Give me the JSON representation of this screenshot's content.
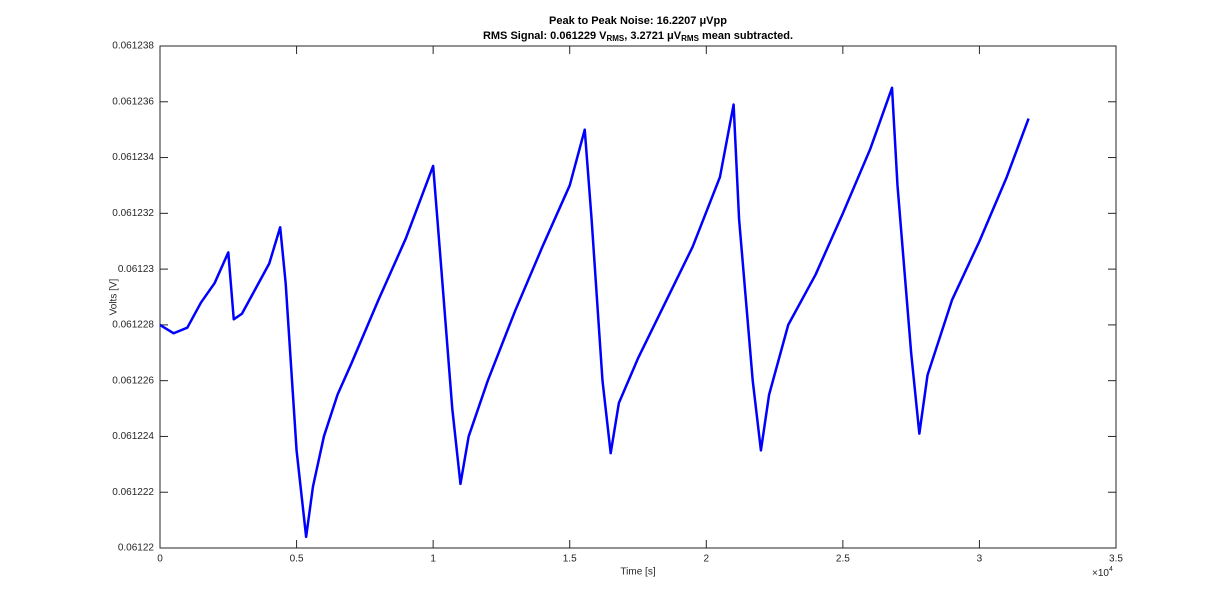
{
  "chart_data": {
    "type": "line",
    "title": "Peak to Peak Noise: 16.2207 μVpp",
    "subtitle_parts": [
      "RMS Signal: 0.061229 V",
      "RMS",
      ", 3.2721 μV",
      "RMS",
      " mean subtracted."
    ],
    "x_label": "Time [s]",
    "y_label": "Volts [V]",
    "x_exponent": {
      "base": "×10",
      "power": "4"
    },
    "xlim": [
      0,
      35000
    ],
    "ylim": [
      0.06122,
      0.061238
    ],
    "xticks": [
      {
        "value": 0,
        "label": "0"
      },
      {
        "value": 5000,
        "label": "0.5"
      },
      {
        "value": 10000,
        "label": "1"
      },
      {
        "value": 15000,
        "label": "1.5"
      },
      {
        "value": 20000,
        "label": "2"
      },
      {
        "value": 25000,
        "label": "2.5"
      },
      {
        "value": 30000,
        "label": "3"
      },
      {
        "value": 35000,
        "label": "3.5"
      }
    ],
    "yticks": [
      0.06122,
      0.061222,
      0.061224,
      0.061226,
      0.061228,
      0.06123,
      0.061232,
      0.061234,
      0.061236,
      0.061238
    ],
    "grid": false,
    "x": [
      0,
      500,
      1000,
      1500,
      2000,
      2500,
      2700,
      3000,
      3500,
      4000,
      4400,
      4600,
      5000,
      5350,
      5600,
      6000,
      6500,
      7000,
      8000,
      9000,
      10000,
      10300,
      10700,
      11000,
      11300,
      12000,
      13000,
      14000,
      15000,
      15550,
      15800,
      16200,
      16500,
      16800,
      17500,
      18500,
      19500,
      20500,
      21000,
      21200,
      21700,
      22000,
      22300,
      23000,
      24000,
      25000,
      26000,
      26800,
      27000,
      27500,
      27800,
      28100,
      29000,
      30000,
      31000,
      31800
    ],
    "series": [
      {
        "color": "#0000ff",
        "values": [
          0.061228,
          0.0612277,
          0.0612279,
          0.0612288,
          0.0612295,
          0.0612306,
          0.0612282,
          0.0612284,
          0.0612293,
          0.0612302,
          0.0612315,
          0.0612295,
          0.0612235,
          0.0612204,
          0.0612222,
          0.061224,
          0.0612255,
          0.0612266,
          0.0612289,
          0.0612311,
          0.0612337,
          0.06123,
          0.061225,
          0.0612223,
          0.061224,
          0.061226,
          0.0612285,
          0.0612308,
          0.061233,
          0.061235,
          0.0612318,
          0.061226,
          0.0612234,
          0.0612252,
          0.0612268,
          0.0612288,
          0.0612308,
          0.0612333,
          0.0612359,
          0.0612318,
          0.061226,
          0.0612235,
          0.0612255,
          0.061228,
          0.0612298,
          0.061232,
          0.0612343,
          0.0612365,
          0.061233,
          0.061227,
          0.0612241,
          0.0612262,
          0.0612289,
          0.061231,
          0.0612333,
          0.0612354
        ]
      }
    ]
  }
}
